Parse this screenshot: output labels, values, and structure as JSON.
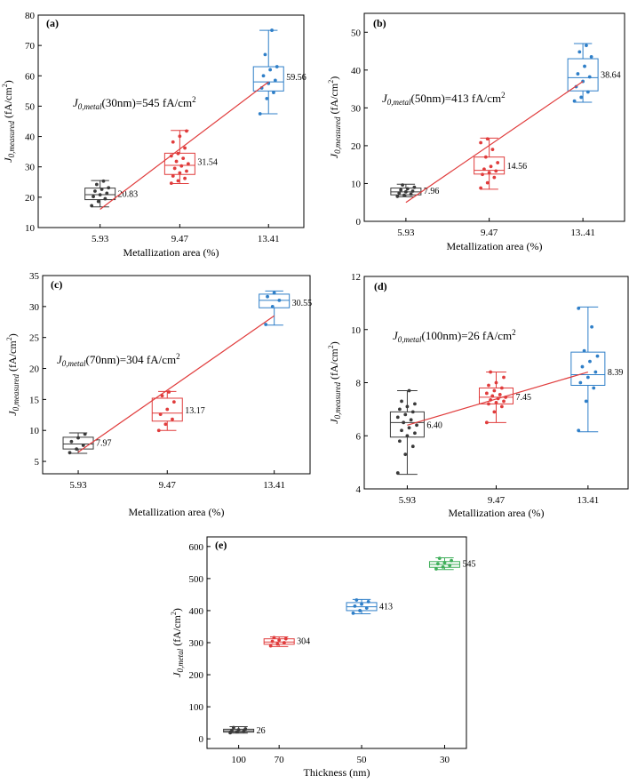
{
  "chart_data": [
    {
      "panel": "(a)",
      "type": "box",
      "xlabel": "Metallization area (%)",
      "categories": [
        "5.93",
        "9.47",
        "13.41"
      ],
      "ylim": [
        10,
        80
      ],
      "yticks": [
        10,
        20,
        30,
        40,
        50,
        60,
        70,
        80
      ],
      "annotation_prefix": "J",
      "annotation_sub": "0,metal",
      "annotation_text": "(30nm)=545 fA/cm",
      "annotation_sup": "2",
      "colors": [
        "#3a3a3a",
        "#e03c3c",
        "#2f7fc8"
      ],
      "boxes": [
        {
          "median_label": "20.83",
          "median": 20.83,
          "q1": 19.2,
          "q3": 23.0,
          "wlo": 16.8,
          "whi": 25.5,
          "mean": 21.0,
          "points": [
            17.2,
            18.6,
            19.5,
            20.2,
            20.8,
            21.3,
            22.0,
            22.6,
            23.1,
            24.2,
            25.3
          ]
        },
        {
          "median_label": "31.54",
          "median": 30.5,
          "q1": 27.5,
          "q3": 34.5,
          "wlo": 24.5,
          "whi": 42.0,
          "mean": 31.54,
          "points": [
            24.6,
            25.4,
            26.2,
            27.0,
            28.0,
            28.6,
            29.5,
            30.3,
            31.0,
            31.8,
            32.8,
            33.6,
            34.4,
            36.2,
            38.2,
            40.1,
            41.8
          ]
        },
        {
          "median_label": "59.56",
          "median": 58.0,
          "q1": 55.0,
          "q3": 63.0,
          "wlo": 47.5,
          "whi": 75.0,
          "mean": 59.56,
          "points": [
            47.5,
            52.5,
            54.5,
            56.0,
            57.5,
            58.5,
            60.0,
            62.0,
            63.0,
            67.0,
            75.0
          ]
        }
      ],
      "fit_line": [
        [
          5.93,
          16.0
        ],
        [
          13.41,
          58.0
        ]
      ]
    },
    {
      "panel": "(b)",
      "type": "box",
      "xlabel": "Metallization area (%)",
      "categories": [
        "5.93",
        "9.47",
        "13..41"
      ],
      "ylim": [
        0,
        55
      ],
      "yticks": [
        0,
        10,
        20,
        30,
        40,
        50
      ],
      "annotation_prefix": "J",
      "annotation_sub": "0,metal",
      "annotation_text": "(50nm)=413 fA/cm",
      "annotation_sup": "2",
      "colors": [
        "#3a3a3a",
        "#e03c3c",
        "#2f7fc8"
      ],
      "boxes": [
        {
          "median_label": "7.96",
          "median": 7.8,
          "q1": 7.0,
          "q3": 8.8,
          "wlo": 6.5,
          "whi": 9.8,
          "mean": 7.96,
          "points": [
            6.6,
            6.9,
            7.2,
            7.5,
            7.8,
            8.0,
            8.3,
            8.6,
            9.0,
            9.6
          ]
        },
        {
          "median_label": "14.56",
          "median": 13.5,
          "q1": 12.5,
          "q3": 17.0,
          "wlo": 8.5,
          "whi": 22.0,
          "mean": 14.56,
          "points": [
            8.8,
            10.2,
            11.6,
            12.4,
            12.9,
            13.3,
            13.8,
            14.5,
            15.5,
            17.0,
            19.0,
            20.8,
            21.8
          ]
        },
        {
          "median_label": "38.64",
          "median": 38.0,
          "q1": 34.5,
          "q3": 43.0,
          "wlo": 31.5,
          "whi": 47.0,
          "mean": 38.64,
          "points": [
            31.8,
            32.8,
            34.2,
            35.6,
            37.0,
            38.2,
            39.0,
            41.0,
            43.5,
            44.8,
            46.5
          ]
        }
      ],
      "fit_line": [
        [
          5.93,
          5.0
        ],
        [
          13.41,
          37.0
        ]
      ]
    },
    {
      "panel": "(c)",
      "type": "box",
      "xlabel": "Metallization area (%)",
      "categories": [
        "5.93",
        "9.47",
        "13.41"
      ],
      "ylim": [
        3,
        35
      ],
      "yticks": [
        5,
        10,
        15,
        20,
        25,
        30,
        35
      ],
      "annotation_prefix": "J",
      "annotation_sub": "0,metal",
      "annotation_text": "(70nm)=304 fA/cm",
      "annotation_sup": "2",
      "colors": [
        "#3a3a3a",
        "#e03c3c",
        "#2f7fc8"
      ],
      "boxes": [
        {
          "median_label": "7.97",
          "median": 7.8,
          "q1": 7.0,
          "q3": 8.9,
          "wlo": 6.3,
          "whi": 9.6,
          "mean": 7.97,
          "points": [
            6.4,
            7.0,
            7.6,
            8.2,
            8.8,
            9.4
          ]
        },
        {
          "median_label": "13.17",
          "median": 12.8,
          "q1": 11.5,
          "q3": 15.2,
          "wlo": 10.0,
          "whi": 16.3,
          "mean": 13.17,
          "points": [
            10.0,
            11.0,
            11.8,
            12.6,
            13.4,
            14.6,
            15.6,
            16.2
          ]
        },
        {
          "median_label": "30.55",
          "median": 31.0,
          "q1": 29.8,
          "q3": 32.0,
          "wlo": 27.0,
          "whi": 32.5,
          "mean": 30.55,
          "points": [
            27.1,
            30.0,
            31.0,
            31.6,
            32.2
          ]
        }
      ],
      "fit_line": [
        [
          5.93,
          6.5
        ],
        [
          13.41,
          28.5
        ]
      ]
    },
    {
      "panel": "(d)",
      "type": "box",
      "xlabel": "Metallization area (%)",
      "categories": [
        "5.93",
        "9.47",
        "13.41"
      ],
      "ylim": [
        4,
        12
      ],
      "yticks": [
        4,
        6,
        8,
        10,
        12
      ],
      "annotation_prefix": "J",
      "annotation_sub": "0,metal",
      "annotation_text": "(100nm)=26 fA/cm",
      "annotation_sup": "2",
      "colors": [
        "#3a3a3a",
        "#e03c3c",
        "#2f7fc8"
      ],
      "boxes": [
        {
          "median_label": "6.40",
          "median": 6.5,
          "q1": 5.95,
          "q3": 6.9,
          "wlo": 4.55,
          "whi": 7.7,
          "mean": 6.4,
          "points": [
            4.6,
            5.3,
            5.6,
            5.8,
            6.0,
            6.1,
            6.2,
            6.3,
            6.4,
            6.5,
            6.6,
            6.7,
            6.8,
            6.9,
            7.0,
            7.1,
            7.2,
            7.3,
            7.7
          ]
        },
        {
          "median_label": "7.45",
          "median": 7.45,
          "q1": 7.2,
          "q3": 7.8,
          "wlo": 6.5,
          "whi": 8.4,
          "mean": 7.45,
          "points": [
            6.5,
            6.9,
            7.1,
            7.2,
            7.25,
            7.3,
            7.35,
            7.4,
            7.45,
            7.5,
            7.55,
            7.6,
            7.7,
            7.8,
            7.9,
            8.0,
            8.2,
            8.4
          ]
        },
        {
          "median_label": "8.39",
          "median": 8.3,
          "q1": 7.9,
          "q3": 9.15,
          "wlo": 6.15,
          "whi": 10.85,
          "mean": 8.39,
          "points": [
            6.2,
            7.3,
            7.8,
            8.0,
            8.2,
            8.4,
            8.6,
            8.8,
            9.0,
            9.2,
            10.1,
            10.8
          ]
        }
      ],
      "fit_line": [
        [
          5.93,
          6.4
        ],
        [
          13.41,
          8.4
        ]
      ]
    },
    {
      "panel": "(e)",
      "type": "box",
      "xlabel": "Thickness  (nm)",
      "categories": [
        "100",
        "70",
        "50",
        "30"
      ],
      "ylim": [
        -30,
        630
      ],
      "yticks": [
        0,
        100,
        200,
        300,
        400,
        500,
        600
      ],
      "colors": [
        "#3a3a3a",
        "#e03c3c",
        "#2f7fc8",
        "#3fae5a"
      ],
      "boxes": [
        {
          "median_label": "26",
          "median": 25,
          "q1": 21,
          "q3": 30,
          "wlo": 18,
          "whi": 38,
          "mean": 26,
          "points": [
            19,
            22,
            24,
            26,
            28,
            31,
            35
          ]
        },
        {
          "median_label": "304",
          "median": 302,
          "q1": 295,
          "q3": 312,
          "wlo": 288,
          "whi": 318,
          "mean": 304,
          "points": [
            290,
            296,
            300,
            304,
            308,
            312,
            316
          ]
        },
        {
          "median_label": "413",
          "median": 412,
          "q1": 400,
          "q3": 425,
          "wlo": 390,
          "whi": 435,
          "mean": 413,
          "points": [
            392,
            400,
            408,
            414,
            420,
            428,
            433
          ]
        },
        {
          "median_label": "545",
          "median": 544,
          "q1": 535,
          "q3": 553,
          "wlo": 528,
          "whi": 565,
          "mean": 545,
          "points": [
            530,
            536,
            541,
            546,
            550,
            556,
            563
          ]
        }
      ]
    }
  ],
  "ylabel_main": "J",
  "ylabel_sub_measured": "0,measured",
  "ylabel_sub_metal": "0,metal",
  "ylabel_unit": "(fA/cm",
  "ylabel_sup": "2",
  "ylabel_close": ")"
}
